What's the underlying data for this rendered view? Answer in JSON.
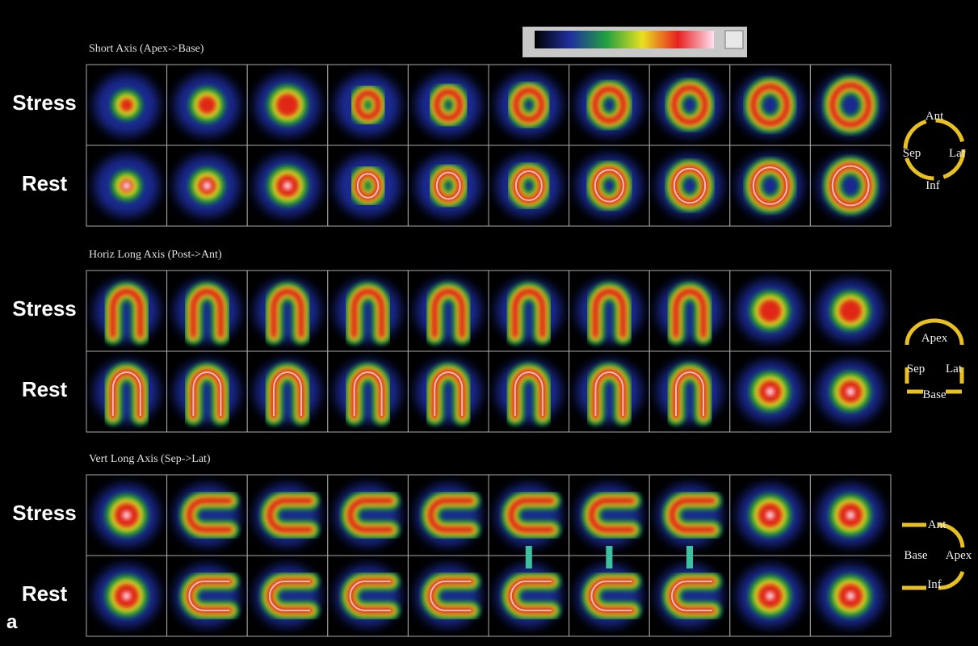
{
  "sections": [
    {
      "title": "Short Axis (Apex->Base)",
      "rows": [
        "Stress",
        "Rest"
      ],
      "orientation": [
        "Ant",
        "Sep",
        "Lat",
        "Inf"
      ]
    },
    {
      "title": "Horiz Long Axis (Post->Ant)",
      "rows": [
        "Stress",
        "Rest"
      ],
      "orientation": [
        "Apex",
        "Sep",
        "Lat",
        "Base"
      ]
    },
    {
      "title": "Vert Long Axis (Sep->Lat)",
      "rows": [
        "Stress",
        "Rest"
      ],
      "orientation": [
        "Ant",
        "Base",
        "Apex",
        "Inf"
      ]
    }
  ],
  "panel_label": "a"
}
